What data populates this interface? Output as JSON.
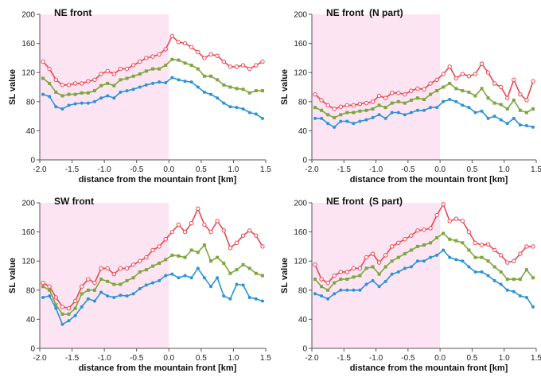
{
  "chart_data": [
    {
      "type": "line",
      "title": "NE front",
      "xlabel": "distance from the mountain front [km]",
      "ylabel": "SL value",
      "xlim": [
        -2.0,
        1.5
      ],
      "ylim": [
        0,
        200
      ],
      "xticks": [
        "-2.0",
        "-1.5",
        "-1.0",
        "-0.5",
        "0.0",
        "0.5",
        "1.0",
        "1.5"
      ],
      "yticks": [
        "0",
        "40",
        "80",
        "120",
        "160",
        "200"
      ],
      "shaded_region": [
        -2.0,
        0.0
      ],
      "grid": false,
      "colors": {
        "red": "#e8474f",
        "green": "#7ea63f",
        "blue": "#2b93d6",
        "shade": "#fce4f3"
      },
      "x": [
        -1.95,
        -1.85,
        -1.75,
        -1.65,
        -1.55,
        -1.45,
        -1.35,
        -1.25,
        -1.15,
        -1.05,
        -0.95,
        -0.85,
        -0.75,
        -0.65,
        -0.55,
        -0.45,
        -0.35,
        -0.25,
        -0.15,
        -0.05,
        0.05,
        0.15,
        0.25,
        0.35,
        0.45,
        0.55,
        0.65,
        0.75,
        0.85,
        0.95,
        1.05,
        1.15,
        1.25,
        1.35,
        1.45
      ],
      "series": [
        {
          "color": "red",
          "values": [
            135,
            125,
            110,
            103,
            103,
            105,
            105,
            108,
            110,
            118,
            122,
            118,
            125,
            125,
            130,
            135,
            140,
            142,
            145,
            152,
            170,
            162,
            160,
            155,
            148,
            140,
            145,
            143,
            135,
            128,
            128,
            130,
            125,
            130,
            135
          ]
        },
        {
          "color": "green",
          "values": [
            112,
            105,
            93,
            88,
            90,
            90,
            92,
            92,
            95,
            102,
            105,
            102,
            110,
            112,
            115,
            118,
            122,
            125,
            125,
            130,
            138,
            137,
            133,
            130,
            125,
            115,
            115,
            110,
            103,
            100,
            98,
            97,
            92,
            95,
            95
          ]
        },
        {
          "color": "blue",
          "values": [
            90,
            87,
            73,
            70,
            75,
            77,
            78,
            78,
            80,
            85,
            88,
            85,
            93,
            95,
            97,
            100,
            103,
            105,
            107,
            106,
            113,
            110,
            108,
            107,
            100,
            93,
            90,
            85,
            78,
            73,
            72,
            70,
            65,
            63,
            57
          ]
        }
      ]
    },
    {
      "type": "line",
      "title": "NE front  (N part)",
      "xlabel": "distance from the mountain front [km]",
      "ylabel": "SL value",
      "xlim": [
        -2.0,
        1.5
      ],
      "ylim": [
        0,
        200
      ],
      "xticks": [
        "-2.0",
        "-1.5",
        "-1.0",
        "-0.5",
        "0.0",
        "0.5",
        "1.0",
        "1.5"
      ],
      "yticks": [
        "0",
        "40",
        "80",
        "120",
        "160",
        "200"
      ],
      "shaded_region": [
        -2.0,
        0.0
      ],
      "grid": false,
      "colors": {
        "red": "#e8474f",
        "green": "#7ea63f",
        "blue": "#2b93d6",
        "shade": "#fce4f3"
      },
      "x": [
        -1.95,
        -1.85,
        -1.75,
        -1.65,
        -1.55,
        -1.45,
        -1.35,
        -1.25,
        -1.15,
        -1.05,
        -0.95,
        -0.85,
        -0.75,
        -0.65,
        -0.55,
        -0.45,
        -0.35,
        -0.25,
        -0.15,
        -0.05,
        0.05,
        0.15,
        0.25,
        0.35,
        0.45,
        0.55,
        0.65,
        0.75,
        0.85,
        0.95,
        1.05,
        1.15,
        1.25,
        1.35,
        1.45
      ],
      "series": [
        {
          "color": "red",
          "values": [
            90,
            82,
            75,
            70,
            73,
            75,
            75,
            77,
            78,
            80,
            88,
            85,
            92,
            92,
            90,
            95,
            98,
            97,
            105,
            110,
            118,
            128,
            112,
            118,
            115,
            118,
            132,
            120,
            105,
            100,
            85,
            110,
            90,
            82,
            108
          ]
        },
        {
          "color": "green",
          "values": [
            72,
            68,
            62,
            58,
            62,
            65,
            65,
            67,
            68,
            70,
            75,
            72,
            78,
            80,
            78,
            82,
            85,
            83,
            90,
            95,
            100,
            105,
            98,
            95,
            93,
            88,
            98,
            85,
            78,
            76,
            70,
            82,
            68,
            65,
            70
          ]
        },
        {
          "color": "blue",
          "values": [
            57,
            57,
            50,
            45,
            53,
            53,
            50,
            53,
            55,
            58,
            62,
            57,
            65,
            65,
            62,
            65,
            68,
            68,
            72,
            72,
            80,
            83,
            80,
            75,
            72,
            65,
            67,
            57,
            60,
            55,
            50,
            57,
            48,
            47,
            45
          ]
        }
      ]
    },
    {
      "type": "line",
      "title": "SW front",
      "xlabel": "distance from the mountain front [km]",
      "ylabel": "SL value",
      "xlim": [
        -2.0,
        1.5
      ],
      "ylim": [
        0,
        200
      ],
      "xticks": [
        "-2.0",
        "-1.5",
        "-1.0",
        "-0.5",
        "0.0",
        "0.5",
        "1.0",
        "1.5"
      ],
      "yticks": [
        "0",
        "40",
        "80",
        "120",
        "160",
        "200"
      ],
      "shaded_region": [
        -2.0,
        0.0
      ],
      "grid": false,
      "colors": {
        "red": "#e8474f",
        "green": "#7ea63f",
        "blue": "#2b93d6",
        "shade": "#fce4f3"
      },
      "x": [
        -1.95,
        -1.85,
        -1.75,
        -1.65,
        -1.55,
        -1.45,
        -1.35,
        -1.25,
        -1.15,
        -1.05,
        -0.95,
        -0.85,
        -0.75,
        -0.65,
        -0.55,
        -0.45,
        -0.35,
        -0.25,
        -0.15,
        -0.05,
        0.05,
        0.15,
        0.25,
        0.35,
        0.45,
        0.55,
        0.65,
        0.75,
        0.85,
        0.95,
        1.05,
        1.15,
        1.25,
        1.35,
        1.45
      ],
      "series": [
        {
          "color": "red",
          "values": [
            90,
            85,
            70,
            57,
            55,
            65,
            85,
            95,
            90,
            110,
            110,
            102,
            110,
            110,
            115,
            120,
            125,
            135,
            140,
            150,
            160,
            170,
            160,
            172,
            192,
            170,
            160,
            175,
            162,
            138,
            145,
            155,
            162,
            155,
            140
          ]
        },
        {
          "color": "green",
          "values": [
            85,
            80,
            60,
            47,
            47,
            55,
            75,
            80,
            80,
            95,
            92,
            88,
            88,
            93,
            97,
            105,
            108,
            113,
            117,
            122,
            128,
            127,
            125,
            135,
            132,
            142,
            120,
            125,
            117,
            103,
            108,
            115,
            110,
            103,
            100
          ]
        },
        {
          "color": "blue",
          "values": [
            70,
            72,
            55,
            33,
            38,
            45,
            57,
            68,
            65,
            77,
            72,
            70,
            73,
            72,
            75,
            82,
            87,
            90,
            93,
            100,
            102,
            97,
            100,
            97,
            110,
            97,
            85,
            97,
            72,
            68,
            88,
            87,
            70,
            68,
            65
          ]
        }
      ]
    },
    {
      "type": "line",
      "title": "NE front  (S part)",
      "xlabel": "distance from the mountain front [km]",
      "ylabel": "SL value",
      "xlim": [
        -2.0,
        1.5
      ],
      "ylim": [
        0,
        200
      ],
      "xticks": [
        "-2.0",
        "-1.5",
        "-1.0",
        "-0.5",
        "0.0",
        "0.5",
        "1.0",
        "1.5"
      ],
      "yticks": [
        "0",
        "40",
        "80",
        "120",
        "160",
        "200"
      ],
      "shaded_region": [
        -2.0,
        0.0
      ],
      "grid": false,
      "colors": {
        "red": "#e8474f",
        "green": "#7ea63f",
        "blue": "#2b93d6",
        "shade": "#fce4f3"
      },
      "x": [
        -1.95,
        -1.85,
        -1.75,
        -1.65,
        -1.55,
        -1.45,
        -1.35,
        -1.25,
        -1.15,
        -1.05,
        -0.95,
        -0.85,
        -0.75,
        -0.65,
        -0.55,
        -0.45,
        -0.35,
        -0.25,
        -0.15,
        -0.05,
        0.05,
        0.15,
        0.25,
        0.35,
        0.45,
        0.55,
        0.65,
        0.75,
        0.85,
        0.95,
        1.05,
        1.15,
        1.25,
        1.35,
        1.45
      ],
      "series": [
        {
          "color": "red",
          "values": [
            115,
            95,
            90,
            100,
            105,
            105,
            110,
            110,
            125,
            130,
            118,
            128,
            140,
            145,
            150,
            155,
            162,
            163,
            165,
            183,
            198,
            175,
            178,
            175,
            160,
            145,
            142,
            143,
            135,
            128,
            118,
            120,
            130,
            140,
            140
          ]
        },
        {
          "color": "green",
          "values": [
            95,
            85,
            80,
            90,
            95,
            95,
            98,
            100,
            110,
            112,
            102,
            112,
            120,
            125,
            130,
            135,
            140,
            142,
            145,
            152,
            158,
            150,
            148,
            145,
            135,
            125,
            125,
            120,
            112,
            105,
            95,
            95,
            95,
            108,
            97
          ]
        },
        {
          "color": "blue",
          "values": [
            75,
            72,
            68,
            75,
            80,
            80,
            80,
            80,
            88,
            93,
            85,
            92,
            102,
            105,
            110,
            112,
            120,
            120,
            125,
            128,
            135,
            125,
            122,
            120,
            112,
            105,
            105,
            100,
            93,
            88,
            80,
            78,
            72,
            70,
            57
          ]
        }
      ]
    }
  ]
}
